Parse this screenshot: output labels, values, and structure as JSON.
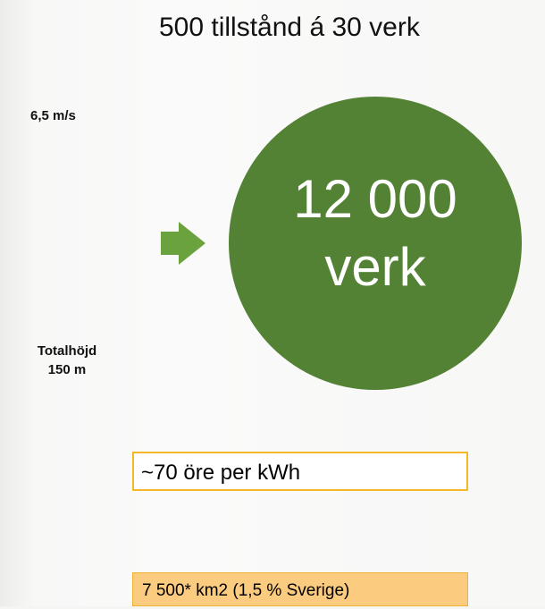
{
  "title": "500 tillstånd á 30 verk",
  "left_labels": {
    "wind": "6,5 m/s",
    "height_line1": "Totalhöjd",
    "height_line2": "150 m"
  },
  "circle": {
    "line1": "12 000",
    "line2": "verk"
  },
  "price_box": "~70 öre per kWh",
  "area_box": "7 500* km2 (1,5 % Sverige)"
}
